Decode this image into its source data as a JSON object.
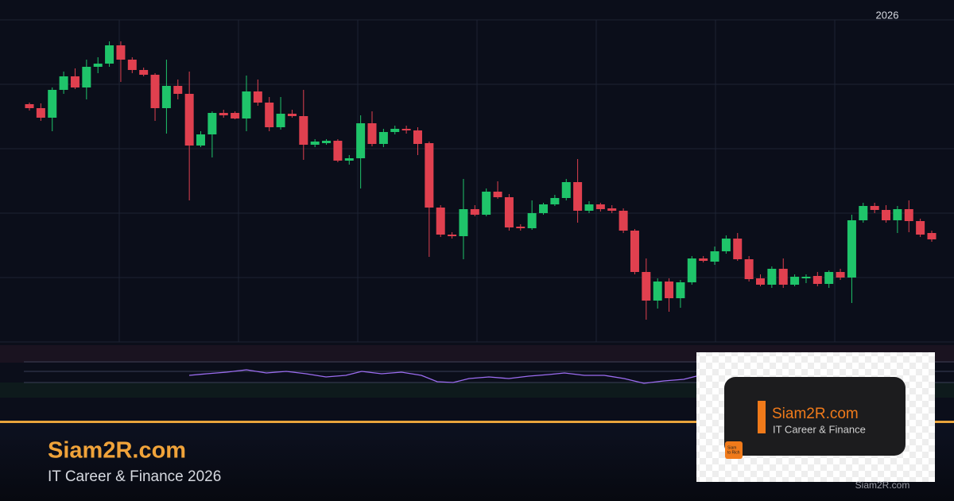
{
  "chart_data": {
    "type": "candlestick",
    "time_label": "2026",
    "open": [
      369,
      364,
      352,
      387,
      404,
      390,
      416,
      420,
      443,
      425,
      412,
      406,
      364,
      392,
      382,
      317,
      331,
      358,
      358,
      351,
      385,
      371,
      340,
      357,
      354,
      318,
      320,
      323,
      298,
      301,
      345,
      319,
      334,
      338,
      336,
      320,
      239,
      205,
      203,
      237,
      230,
      259,
      252,
      215,
      213,
      232,
      243,
      251,
      271,
      235,
      243,
      238,
      235,
      210,
      158,
      122,
      146,
      125,
      145,
      175,
      171,
      184,
      200,
      174,
      150,
      142,
      162,
      142,
      150,
      153,
      143,
      158,
      151,
      223,
      241,
      236,
      223,
      237,
      222,
      207
    ],
    "high": [
      371,
      370,
      390,
      410,
      414,
      425,
      428,
      448,
      448,
      428,
      415,
      408,
      425,
      400,
      410,
      335,
      360,
      362,
      360,
      405,
      400,
      378,
      378,
      362,
      387,
      325,
      325,
      325,
      305,
      355,
      360,
      338,
      342,
      342,
      340,
      322,
      242,
      208,
      275,
      242,
      263,
      272,
      256,
      218,
      248,
      245,
      255,
      275,
      300,
      247,
      245,
      242,
      238,
      212,
      175,
      150,
      150,
      148,
      178,
      178,
      190,
      204,
      207,
      178,
      155,
      165,
      175,
      155,
      155,
      158,
      160,
      162,
      230,
      245,
      245,
      242,
      241,
      248,
      225,
      210
    ],
    "low": [
      361,
      348,
      335,
      382,
      388,
      375,
      408,
      416,
      397,
      408,
      404,
      348,
      332,
      375,
      248,
      315,
      302,
      352,
      350,
      335,
      367,
      335,
      337,
      352,
      299,
      315,
      318,
      296,
      293,
      263,
      316,
      315,
      331,
      332,
      305,
      177,
      202,
      200,
      174,
      228,
      228,
      250,
      210,
      210,
      211,
      230,
      241,
      248,
      220,
      232,
      234,
      232,
      207,
      155,
      98,
      112,
      108,
      113,
      142,
      170,
      167,
      181,
      172,
      146,
      140,
      138,
      138,
      140,
      144,
      140,
      138,
      148,
      119,
      220,
      232,
      220,
      207,
      208,
      202,
      196
    ],
    "close": [
      364,
      352,
      387,
      404,
      390,
      416,
      420,
      443,
      425,
      412,
      406,
      364,
      392,
      382,
      317,
      331,
      358,
      355,
      351,
      385,
      371,
      340,
      357,
      354,
      318,
      322,
      323,
      298,
      301,
      345,
      319,
      334,
      338,
      336,
      319,
      239,
      205,
      203,
      237,
      230,
      259,
      252,
      214,
      213,
      232,
      243,
      251,
      271,
      235,
      243,
      237,
      235,
      210,
      158,
      122,
      146,
      125,
      145,
      175,
      172,
      184,
      200,
      174,
      149,
      142,
      162,
      142,
      152,
      152,
      143,
      158,
      151,
      223,
      241,
      236,
      223,
      237,
      222,
      205,
      199
    ],
    "ylim": [
      70,
      475
    ],
    "up_color": "#1fc46a",
    "down_color": "#e0404f"
  },
  "brand": {
    "title": "Siam2R.com",
    "subtitle": "IT Career & Finance 2026"
  },
  "logo_card": {
    "title": "Siam2R.com",
    "subtitle": "IT Career & Finance",
    "badge_top": "Siam",
    "badge_bottom": "to Rich"
  },
  "watermark": "Siam2R.com"
}
